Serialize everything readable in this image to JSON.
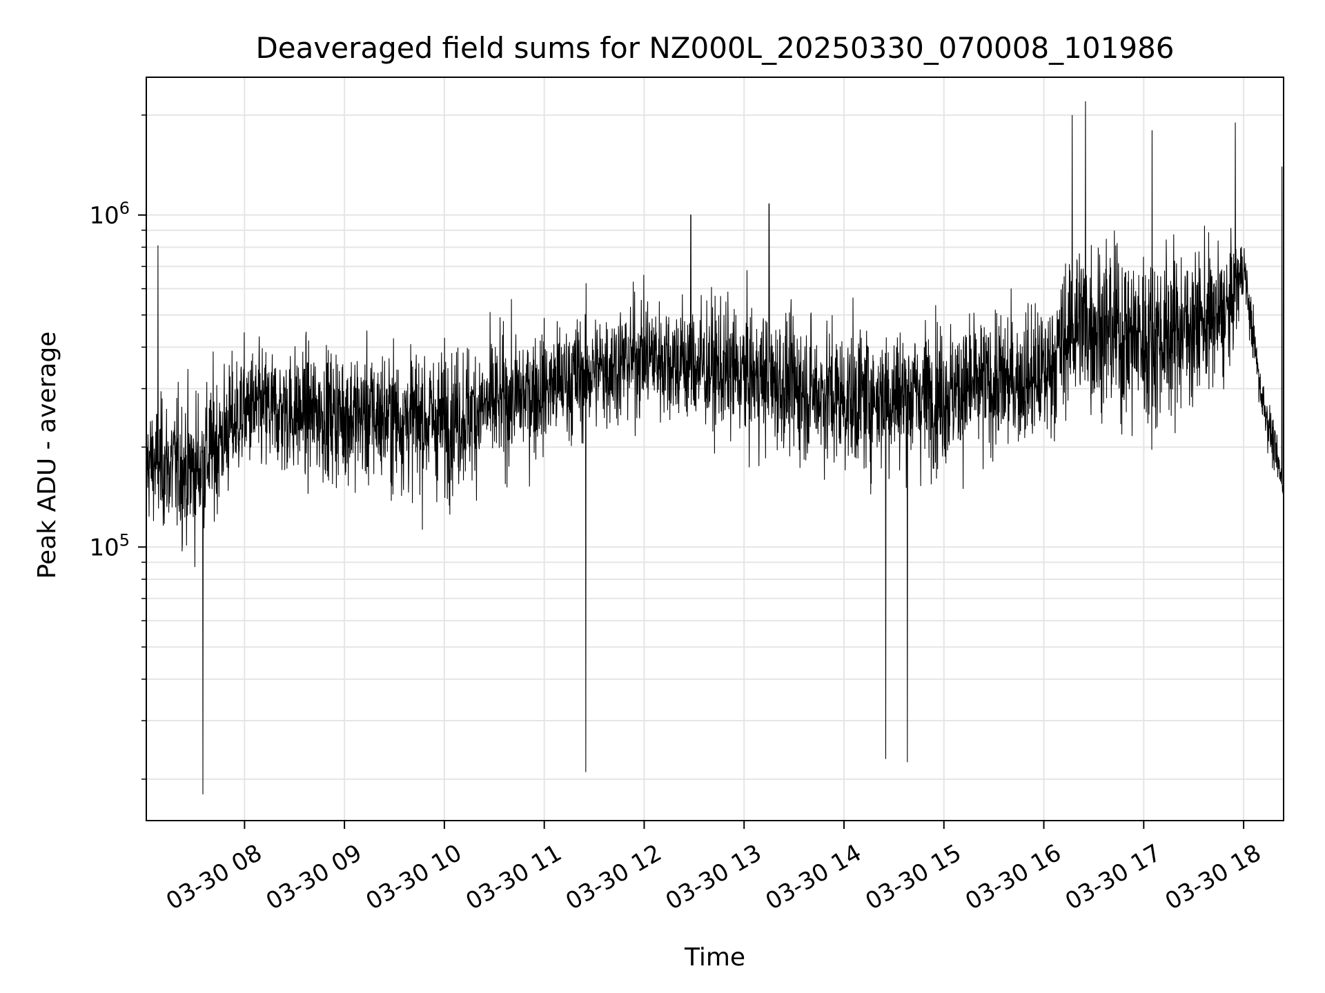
{
  "chart_data": {
    "type": "line",
    "title": "Deaveraged field sums for NZ000L_20250330_070008_101986",
    "xlabel": "Time",
    "ylabel": "Peak ADU - average",
    "yscale": "log",
    "xlim": [
      "2025-03-30 07:01",
      "2025-03-30 18:24"
    ],
    "ylim": [
      15000,
      2600000
    ],
    "grid": true,
    "legend": "none",
    "line_color": "#000000",
    "grid_color": "#e5e5e5",
    "x_ticks": [
      {
        "value": "2025-03-30 08:00",
        "label": "03-30 08"
      },
      {
        "value": "2025-03-30 09:00",
        "label": "03-30 09"
      },
      {
        "value": "2025-03-30 10:00",
        "label": "03-30 10"
      },
      {
        "value": "2025-03-30 11:00",
        "label": "03-30 11"
      },
      {
        "value": "2025-03-30 12:00",
        "label": "03-30 12"
      },
      {
        "value": "2025-03-30 13:00",
        "label": "03-30 13"
      },
      {
        "value": "2025-03-30 14:00",
        "label": "03-30 14"
      },
      {
        "value": "2025-03-30 15:00",
        "label": "03-30 15"
      },
      {
        "value": "2025-03-30 16:00",
        "label": "03-30 16"
      },
      {
        "value": "2025-03-30 17:00",
        "label": "03-30 17"
      },
      {
        "value": "2025-03-30 18:00",
        "label": "03-30 18"
      }
    ],
    "y_ticks": [
      {
        "value": 100000,
        "base": "10",
        "exp": "5"
      },
      {
        "value": 1000000,
        "base": "10",
        "exp": "6"
      }
    ],
    "envelope": [
      {
        "time": "2025-03-30 07:01",
        "center": 180000,
        "spread": 1.7
      },
      {
        "time": "2025-03-30 07:30",
        "center": 170000,
        "spread": 2.1
      },
      {
        "time": "2025-03-30 08:00",
        "center": 260000,
        "spread": 1.8
      },
      {
        "time": "2025-03-30 09:00",
        "center": 250000,
        "spread": 1.9
      },
      {
        "time": "2025-03-30 10:00",
        "center": 240000,
        "spread": 2.0
      },
      {
        "time": "2025-03-30 11:00",
        "center": 300000,
        "spread": 1.8
      },
      {
        "time": "2025-03-30 12:00",
        "center": 380000,
        "spread": 1.8
      },
      {
        "time": "2025-03-30 13:00",
        "center": 330000,
        "spread": 1.9
      },
      {
        "time": "2025-03-30 14:00",
        "center": 280000,
        "spread": 2.0
      },
      {
        "time": "2025-03-30 15:00",
        "center": 290000,
        "spread": 2.0
      },
      {
        "time": "2025-03-30 16:00",
        "center": 330000,
        "spread": 1.9
      },
      {
        "time": "2025-03-30 16:20",
        "center": 480000,
        "spread": 2.2
      },
      {
        "time": "2025-03-30 17:00",
        "center": 420000,
        "spread": 2.4
      },
      {
        "time": "2025-03-30 17:50",
        "center": 500000,
        "spread": 1.9
      },
      {
        "time": "2025-03-30 18:00",
        "center": 700000,
        "spread": 1.3
      },
      {
        "time": "2025-03-30 18:10",
        "center": 300000,
        "spread": 1.3
      },
      {
        "time": "2025-03-30 18:24",
        "center": 150000,
        "spread": 1.2
      }
    ],
    "spikes": [
      {
        "time": "2025-03-30 07:08",
        "value": 810000
      },
      {
        "time": "2025-03-30 07:35",
        "value": 18000
      },
      {
        "time": "2025-03-30 11:25",
        "value": 21000
      },
      {
        "time": "2025-03-30 12:28",
        "value": 1000000
      },
      {
        "time": "2025-03-30 13:15",
        "value": 1080000
      },
      {
        "time": "2025-03-30 14:25",
        "value": 23000
      },
      {
        "time": "2025-03-30 14:38",
        "value": 22500
      },
      {
        "time": "2025-03-30 16:17",
        "value": 2000000
      },
      {
        "time": "2025-03-30 16:25",
        "value": 2200000
      },
      {
        "time": "2025-03-30 17:05",
        "value": 1800000
      },
      {
        "time": "2025-03-30 17:55",
        "value": 1900000
      },
      {
        "time": "2025-03-30 18:23",
        "value": 1400000
      }
    ]
  }
}
